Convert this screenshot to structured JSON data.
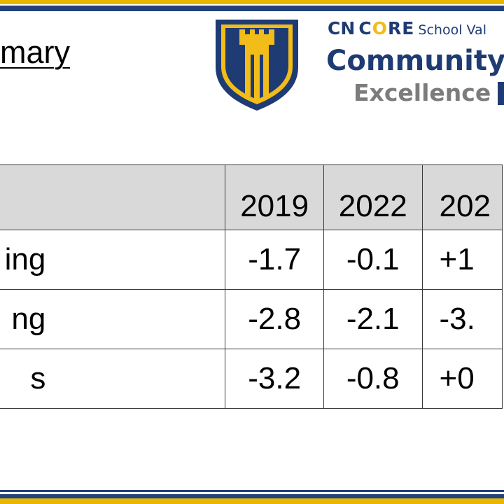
{
  "slide": {
    "title": "mary"
  },
  "logo": {
    "cn": "CN",
    "core_c": "C",
    "core_o": "O",
    "core_re": "RE",
    "school_text": "School Val",
    "community": "Community",
    "excellence": "Excellence"
  },
  "colors": {
    "navy": "#1f3b73",
    "gold": "#f2bc19",
    "gray": "#7c7c7c",
    "header_fill": "#d9d9d9"
  },
  "table": {
    "header": [
      "",
      "2019",
      "2022",
      "202"
    ],
    "rows": [
      {
        "label": "ing",
        "values": [
          "-1.7",
          "-0.1",
          "+1"
        ]
      },
      {
        "label": "ng",
        "values": [
          "-2.8",
          "-2.1",
          "-3."
        ]
      },
      {
        "label": "s",
        "values": [
          "-3.2",
          "-0.8",
          "+0"
        ]
      }
    ]
  }
}
